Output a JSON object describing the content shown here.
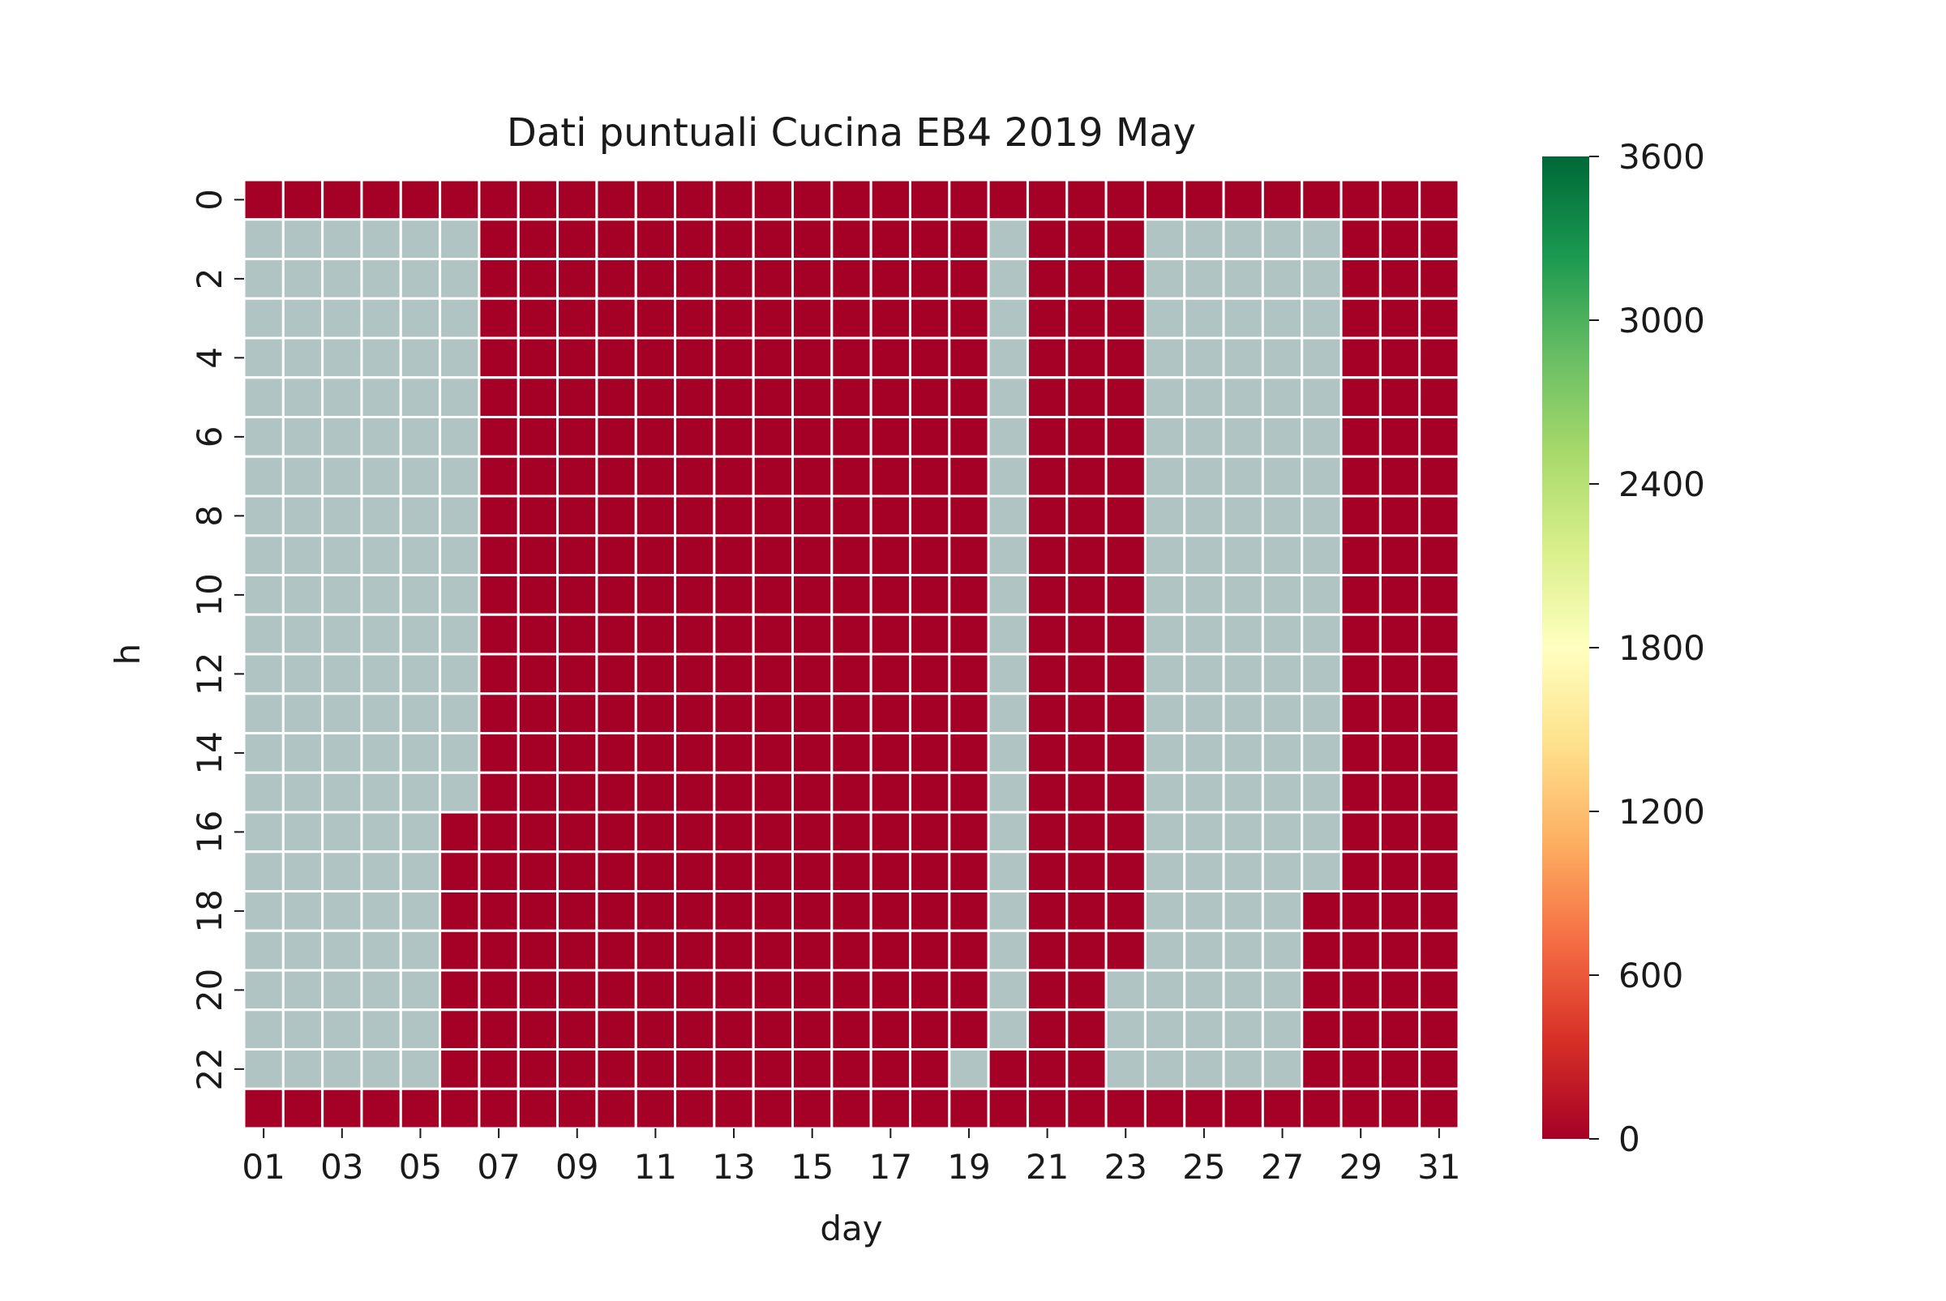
{
  "chart_data": {
    "type": "heatmap",
    "title": "Dati puntuali Cucina EB4 2019 May",
    "xlabel": "day",
    "ylabel": "h",
    "x_categories": [
      "01",
      "02",
      "03",
      "04",
      "05",
      "06",
      "07",
      "08",
      "09",
      "10",
      "11",
      "12",
      "13",
      "14",
      "15",
      "16",
      "17",
      "18",
      "19",
      "20",
      "21",
      "22",
      "23",
      "24",
      "25",
      "26",
      "27",
      "28",
      "29",
      "30",
      "31"
    ],
    "x_tick_labels": [
      "01",
      "03",
      "05",
      "07",
      "09",
      "11",
      "13",
      "15",
      "17",
      "19",
      "21",
      "23",
      "25",
      "27",
      "29",
      "31"
    ],
    "y_categories": [
      "0",
      "1",
      "2",
      "3",
      "4",
      "5",
      "6",
      "7",
      "8",
      "9",
      "10",
      "11",
      "12",
      "13",
      "14",
      "15",
      "16",
      "17",
      "18",
      "19",
      "20",
      "21",
      "22",
      "23"
    ],
    "y_tick_labels": [
      "0",
      "2",
      "4",
      "6",
      "8",
      "10",
      "12",
      "14",
      "16",
      "18",
      "20",
      "22"
    ],
    "value_at_red_cells": 0,
    "cells_missing_by_day": {
      "01": {
        "from_hour": 1,
        "to_hour": 22
      },
      "02": {
        "from_hour": 1,
        "to_hour": 22
      },
      "03": {
        "from_hour": 1,
        "to_hour": 22
      },
      "04": {
        "from_hour": 1,
        "to_hour": 22
      },
      "05": {
        "from_hour": 1,
        "to_hour": 22
      },
      "06": {
        "from_hour": 1,
        "to_hour": 15
      },
      "19": {
        "from_hour": 22,
        "to_hour": 22
      },
      "20": {
        "from_hour": 1,
        "to_hour": 21
      },
      "23": {
        "from_hour": 20,
        "to_hour": 22
      },
      "24": {
        "from_hour": 1,
        "to_hour": 22
      },
      "25": {
        "from_hour": 1,
        "to_hour": 22
      },
      "26": {
        "from_hour": 1,
        "to_hour": 22
      },
      "27": {
        "from_hour": 1,
        "to_hour": 22
      },
      "28": {
        "from_hour": 1,
        "to_hour": 17
      }
    },
    "colorbar": {
      "colormap": "RdYlGn",
      "vmin": 0,
      "vmax": 3600,
      "ticks": [
        0,
        600,
        1200,
        1800,
        2400,
        3000,
        3600
      ],
      "tick_labels": [
        "0",
        "600",
        "1200",
        "1800",
        "2400",
        "3000",
        "3600"
      ],
      "stops": [
        "#a50026",
        "#d73027",
        "#f46d43",
        "#fdae61",
        "#fee08b",
        "#ffffbf",
        "#d9ef8b",
        "#a6d96a",
        "#66bd63",
        "#1a9850",
        "#006837"
      ]
    },
    "colors": {
      "value_zero": "#a50026",
      "missing": "#b0c4c4",
      "grid_line": "#ffffff"
    },
    "grid": true
  }
}
